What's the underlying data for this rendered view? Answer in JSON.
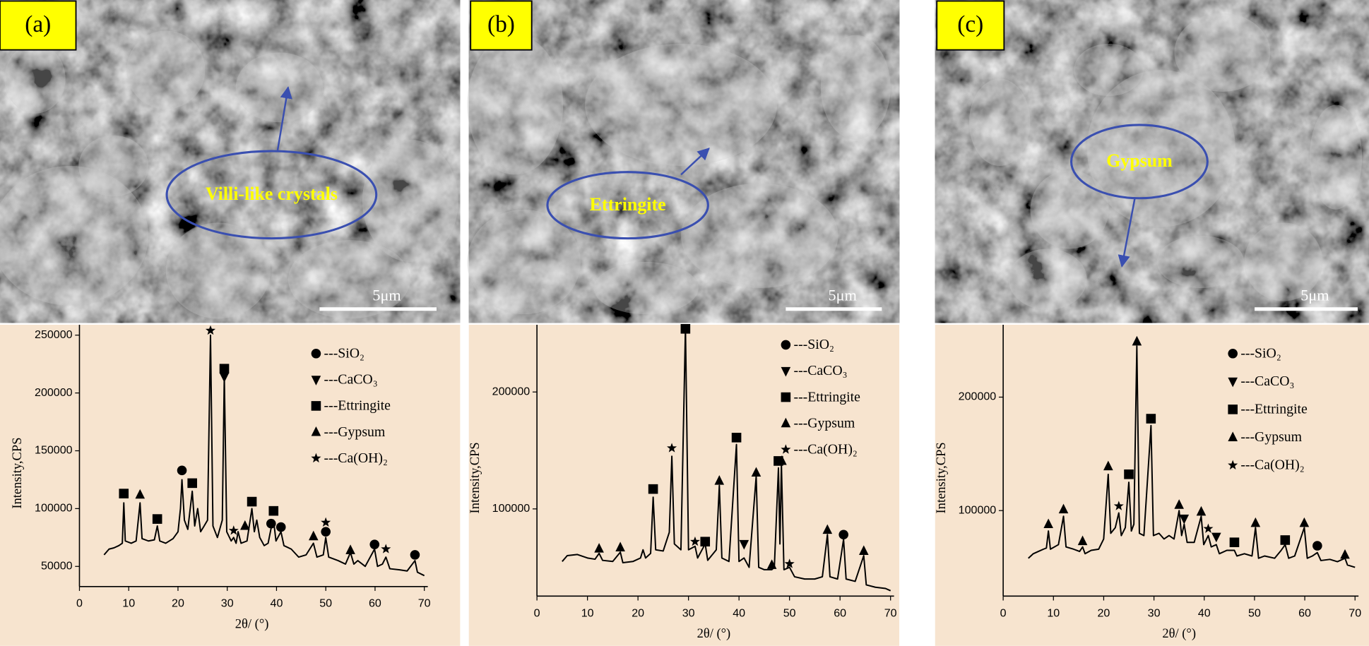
{
  "chart_data": [
    {
      "type": "line",
      "panel_label": "(a)",
      "annotation": "Villi-like crystals",
      "scale_bar": "5μm",
      "x_label": "2θ/ (°)",
      "y_label": "Intensity,CPS",
      "color": "#000000",
      "xlim": [
        0,
        70
      ],
      "xticks": [
        0,
        10,
        20,
        30,
        40,
        50,
        60,
        70
      ],
      "ylim": [
        32600,
        259000
      ],
      "yticks": [
        50000,
        100000,
        150000,
        200000,
        250000
      ],
      "x": [
        5,
        6,
        7,
        8,
        8.7,
        9.0,
        9.3,
        10.5,
        11.5,
        12.3,
        12.7,
        14,
        15.2,
        15.8,
        16.3,
        17.5,
        19,
        20,
        20.5,
        20.8,
        21.3,
        22,
        22.9,
        23.4,
        24,
        24.6,
        25.3,
        26.0,
        26.6,
        27.1,
        28,
        29.0,
        29.4,
        29.9,
        30.8,
        31.3,
        31.8,
        32.2,
        32.8,
        34,
        35.0,
        35.5,
        36.0,
        36.6,
        37.5,
        38.3,
        38.9,
        39.4,
        39.9,
        40.9,
        41.5,
        43,
        44.5,
        46,
        47.5,
        48.2,
        49.5,
        50.0,
        50.6,
        52.5,
        54,
        55.0,
        55.7,
        56.5,
        58,
        59.9,
        60.5,
        61.5,
        62.2,
        63,
        65,
        66.5,
        68.1,
        68.6,
        70
      ],
      "values": [
        60000,
        65000,
        66000,
        68000,
        70000,
        105000,
        72000,
        70000,
        72000,
        105000,
        74000,
        72000,
        73000,
        85000,
        72000,
        70000,
        74000,
        80000,
        100000,
        125000,
        90000,
        82000,
        115000,
        85000,
        100000,
        80000,
        85000,
        90000,
        250000,
        85000,
        75000,
        90000,
        215000,
        80000,
        72000,
        75000,
        70000,
        80000,
        70000,
        72000,
        100000,
        80000,
        90000,
        75000,
        68000,
        70000,
        83000,
        90000,
        72000,
        80000,
        68000,
        65000,
        58000,
        60000,
        70000,
        58000,
        60000,
        75000,
        58000,
        55000,
        52000,
        62000,
        52000,
        55000,
        50000,
        65000,
        50000,
        52000,
        58000,
        48000,
        47000,
        46000,
        55000,
        45000,
        42000
      ],
      "phases": [
        {
          "name": "---SiO₂",
          "symbol": "circle",
          "x": [
            20.8,
            38.9,
            40.9,
            50.0,
            59.9,
            68.1
          ],
          "y": [
            133000,
            87000,
            84000,
            80000,
            69000,
            60000
          ]
        },
        {
          "name": "---CaCO₃",
          "symbol": "triangle-down",
          "x": [
            29.4
          ],
          "y": [
            214000
          ]
        },
        {
          "name": "---Ettringite",
          "symbol": "square",
          "x": [
            9.0,
            15.8,
            22.9,
            29.4,
            35.0,
            39.4
          ],
          "y": [
            113000,
            91000,
            122000,
            221000,
            106000,
            98000
          ]
        },
        {
          "name": "---Gypsum",
          "symbol": "triangle-up",
          "x": [
            12.3,
            33.6,
            47.5,
            55.0
          ],
          "y": [
            112000,
            85000,
            76000,
            64000
          ]
        },
        {
          "name": "---Ca(OH)₂",
          "symbol": "star",
          "x": [
            26.6,
            31.3,
            50.0,
            62.2
          ],
          "y": [
            254000,
            81000,
            88000,
            65000
          ]
        }
      ]
    },
    {
      "type": "line",
      "panel_label": "(b)",
      "annotation": "Ettringite",
      "scale_bar": "5μm",
      "x_label": "2θ/ (°)",
      "y_label": "Intensity,CPS",
      "color": "#000000",
      "xlim": [
        0,
        70
      ],
      "xticks": [
        0,
        10,
        20,
        30,
        40,
        50,
        60,
        70
      ],
      "ylim": [
        25400,
        257500
      ],
      "yticks": [
        100000,
        200000
      ],
      "x": [
        5,
        6,
        8,
        10,
        11.5,
        12.3,
        13,
        15,
        16.5,
        17,
        19,
        20.5,
        21,
        21.5,
        22.5,
        23.0,
        23.5,
        25,
        26.2,
        26.7,
        27.2,
        28.5,
        29.4,
        30,
        31.3,
        31.8,
        33.3,
        33.8,
        35.5,
        36.1,
        36.6,
        38,
        39.5,
        40,
        41,
        42,
        43.4,
        43.9,
        45,
        46.5,
        47,
        47.8,
        48.1,
        48.4,
        48.9,
        50,
        51,
        53,
        55,
        56.5,
        57.5,
        58,
        59.5,
        60.7,
        61.2,
        63,
        64.7,
        65.2,
        67,
        69,
        70
      ],
      "values": [
        55000,
        60000,
        61000,
        58000,
        57000,
        62000,
        56000,
        55000,
        63000,
        54000,
        55000,
        58000,
        65000,
        58000,
        62000,
        110000,
        65000,
        64000,
        80000,
        145000,
        70000,
        65000,
        255000,
        65000,
        68000,
        58000,
        70000,
        56000,
        65000,
        120000,
        58000,
        55000,
        155000,
        55000,
        58000,
        50000,
        128000,
        50000,
        48000,
        48000,
        50000,
        135000,
        70000,
        138000,
        48000,
        50000,
        42000,
        40000,
        40000,
        42000,
        78000,
        42000,
        40000,
        74000,
        40000,
        38000,
        60000,
        35000,
        33000,
        32000,
        30000
      ],
      "phases": [
        {
          "name": "---SiO₂",
          "symbol": "circle",
          "x": [
            60.7
          ],
          "y": [
            78000
          ]
        },
        {
          "name": "---CaCO₃",
          "symbol": "triangle-down",
          "x": [
            41.0
          ],
          "y": [
            70000
          ]
        },
        {
          "name": "---Ettringite",
          "symbol": "square",
          "x": [
            23.0,
            29.4,
            33.3,
            39.5,
            47.8
          ],
          "y": [
            117000,
            254000,
            72000,
            161000,
            141000
          ]
        },
        {
          "name": "---Gypsum",
          "symbol": "triangle-up",
          "x": [
            12.3,
            16.5,
            36.1,
            43.4,
            46.5,
            48.5,
            57.5,
            64.7
          ],
          "y": [
            66000,
            67000,
            124000,
            131000,
            52000,
            141000,
            82000,
            64000
          ]
        },
        {
          "name": "---Ca(OH)₂",
          "symbol": "star",
          "x": [
            26.7,
            31.3,
            50.0
          ],
          "y": [
            152000,
            72000,
            53000
          ]
        }
      ]
    },
    {
      "type": "line",
      "panel_label": "(c)",
      "annotation": "Gypsum",
      "scale_bar": "5μm",
      "x_label": "2θ/ (°)",
      "y_label": "Intensity,CPS",
      "color": "#000000",
      "xlim": [
        0,
        70
      ],
      "xticks": [
        0,
        10,
        20,
        30,
        40,
        50,
        60,
        70
      ],
      "ylim": [
        24600,
        263800
      ],
      "yticks": [
        100000,
        200000
      ],
      "x": [
        5,
        6,
        7,
        8,
        8.6,
        9.0,
        9.4,
        11,
        12.0,
        12.5,
        14,
        15.2,
        15.8,
        16.3,
        17.5,
        19,
        20,
        20.9,
        21.4,
        22.3,
        23.0,
        23.5,
        24.3,
        25.0,
        25.5,
        26.0,
        26.6,
        27.1,
        28,
        29.4,
        29.9,
        31,
        32,
        33,
        34,
        35.0,
        35.5,
        36.0,
        36.6,
        38,
        39.4,
        39.9,
        40.8,
        41.4,
        42.4,
        43,
        44.5,
        46.0,
        46.5,
        48,
        49.5,
        50.2,
        50.8,
        52,
        54,
        55.3,
        56.1,
        56.8,
        58,
        59.9,
        60.5,
        61.5,
        62.5,
        63.2,
        65,
        66.5,
        68.0,
        68.5,
        70
      ],
      "values": [
        58000,
        62000,
        64000,
        66000,
        67000,
        82000,
        66000,
        70000,
        95000,
        68000,
        66000,
        64000,
        68000,
        62000,
        65000,
        66000,
        75000,
        132000,
        80000,
        85000,
        98000,
        78000,
        85000,
        125000,
        82000,
        88000,
        245000,
        80000,
        78000,
        175000,
        78000,
        80000,
        75000,
        78000,
        75000,
        100000,
        78000,
        88000,
        72000,
        72000,
        95000,
        70000,
        78000,
        68000,
        70000,
        62000,
        65000,
        65000,
        60000,
        62000,
        60000,
        85000,
        58000,
        60000,
        58000,
        65000,
        70000,
        58000,
        60000,
        85000,
        58000,
        60000,
        63000,
        56000,
        57000,
        55000,
        58000,
        52000,
        50000
      ],
      "phases": [
        {
          "name": "---SiO₂",
          "symbol": "circle",
          "x": [
            62.5
          ],
          "y": [
            69000
          ]
        },
        {
          "name": "---CaCO₃",
          "symbol": "triangle-down",
          "x": [
            36.0,
            42.4
          ],
          "y": [
            93000,
            77000
          ]
        },
        {
          "name": "---Ettringite",
          "symbol": "square",
          "x": [
            25.0,
            29.4,
            46.0,
            56.1
          ],
          "y": [
            132000,
            181000,
            72000,
            74000
          ]
        },
        {
          "name": "---Gypsum",
          "symbol": "triangle-up",
          "x": [
            9.0,
            12.0,
            15.8,
            20.9,
            26.6,
            35.0,
            39.4,
            50.2,
            59.9,
            68.0
          ],
          "y": [
            88000,
            101000,
            73000,
            139000,
            249000,
            105000,
            99000,
            89000,
            89000,
            61000
          ]
        },
        {
          "name": "---Ca(OH)₂",
          "symbol": "star",
          "x": [
            23.0,
            40.8
          ],
          "y": [
            104000,
            84000
          ]
        }
      ]
    }
  ]
}
